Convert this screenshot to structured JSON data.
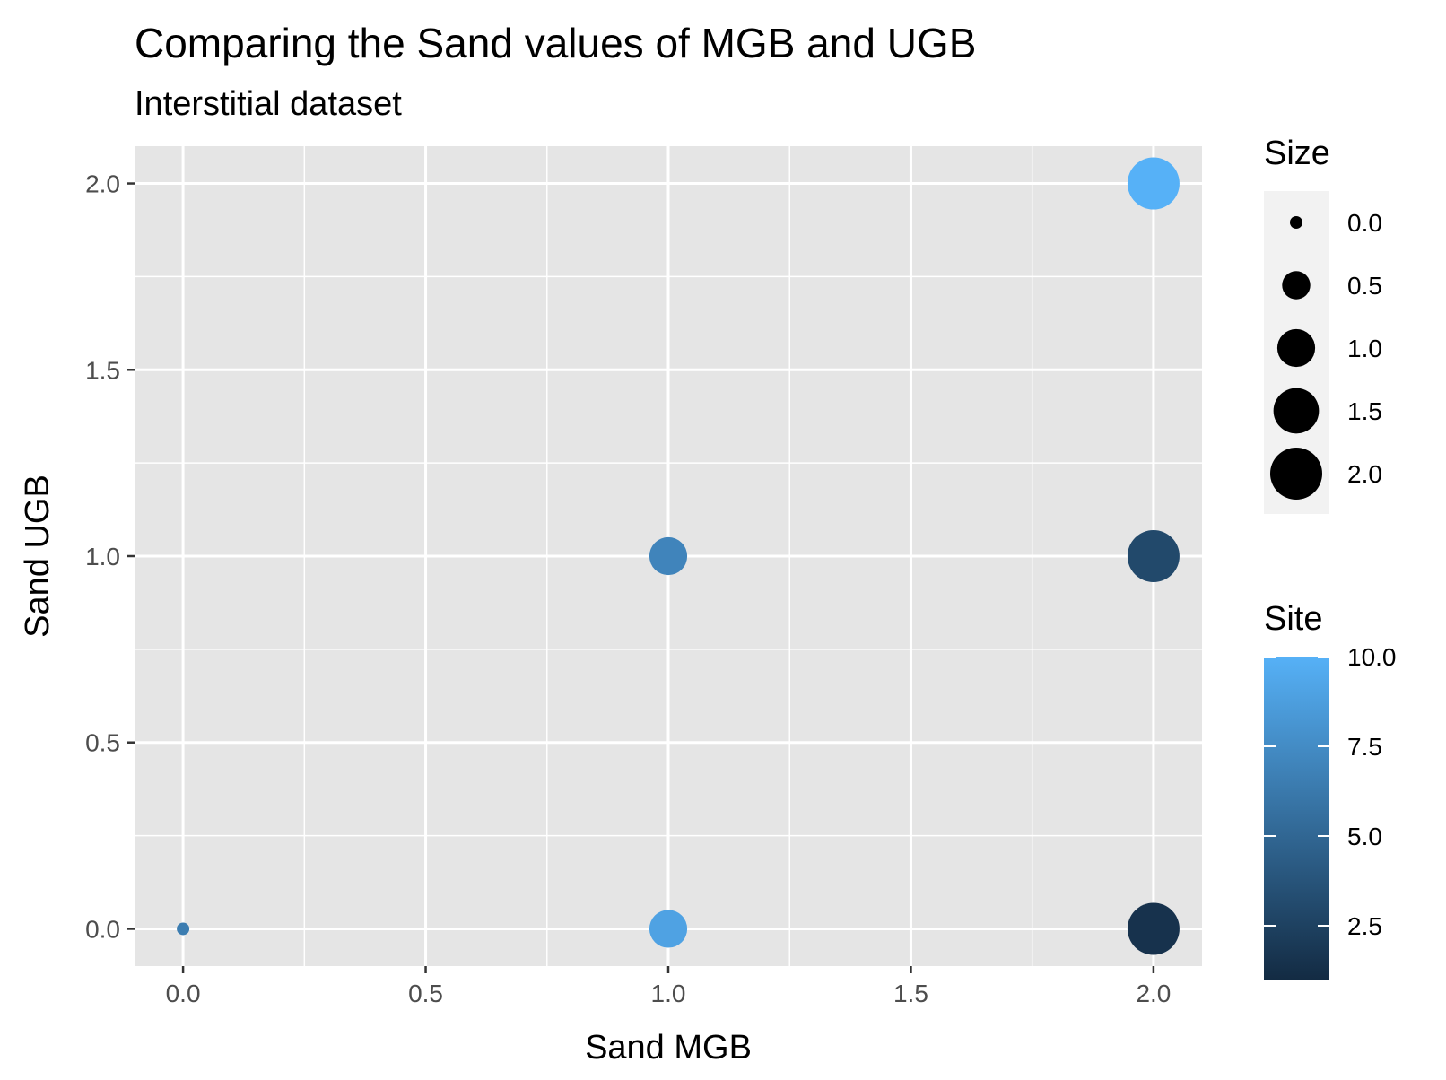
{
  "chart_data": {
    "type": "scatter",
    "title": "Comparing the Sand values of MGB and UGB",
    "subtitle": "Interstitial dataset",
    "xlabel": "Sand MGB",
    "ylabel": "Sand UGB",
    "xlim": [
      -0.1,
      2.1
    ],
    "ylim": [
      -0.1,
      2.1
    ],
    "x_ticks": [
      0.0,
      0.5,
      1.0,
      1.5,
      2.0
    ],
    "x_tick_labels": [
      "0.0",
      "0.5",
      "1.0",
      "1.5",
      "2.0"
    ],
    "y_ticks": [
      0.0,
      0.5,
      1.0,
      1.5,
      2.0
    ],
    "y_tick_labels": [
      "0.0",
      "0.5",
      "1.0",
      "1.5",
      "2.0"
    ],
    "grid": true,
    "panel_background": "#e5e5e5",
    "points": [
      {
        "x": 0.0,
        "y": 0.0,
        "size": 0.0,
        "site": 6.5
      },
      {
        "x": 1.0,
        "y": 0.0,
        "size": 1.0,
        "site": 9.0
      },
      {
        "x": 1.0,
        "y": 1.0,
        "size": 1.0,
        "site": 7.0
      },
      {
        "x": 2.0,
        "y": 0.0,
        "size": 2.0,
        "site": 1.5
      },
      {
        "x": 2.0,
        "y": 1.0,
        "size": 2.0,
        "site": 3.0
      },
      {
        "x": 2.0,
        "y": 2.0,
        "size": 2.0,
        "site": 10.0
      }
    ],
    "legend_placement": "right",
    "size_legend": {
      "title": "Size",
      "values": [
        0.0,
        0.5,
        1.0,
        1.5,
        2.0
      ],
      "labels": [
        "0.0",
        "0.5",
        "1.0",
        "1.5",
        "2.0"
      ]
    },
    "color_legend": {
      "title": "Site",
      "range": [
        1,
        10
      ],
      "breaks": [
        2.5,
        5.0,
        7.5,
        10.0
      ],
      "labels": [
        "2.5",
        "5.0",
        "7.5",
        "10.0"
      ],
      "low_color": "#132b43",
      "high_color": "#56b1f7"
    }
  }
}
